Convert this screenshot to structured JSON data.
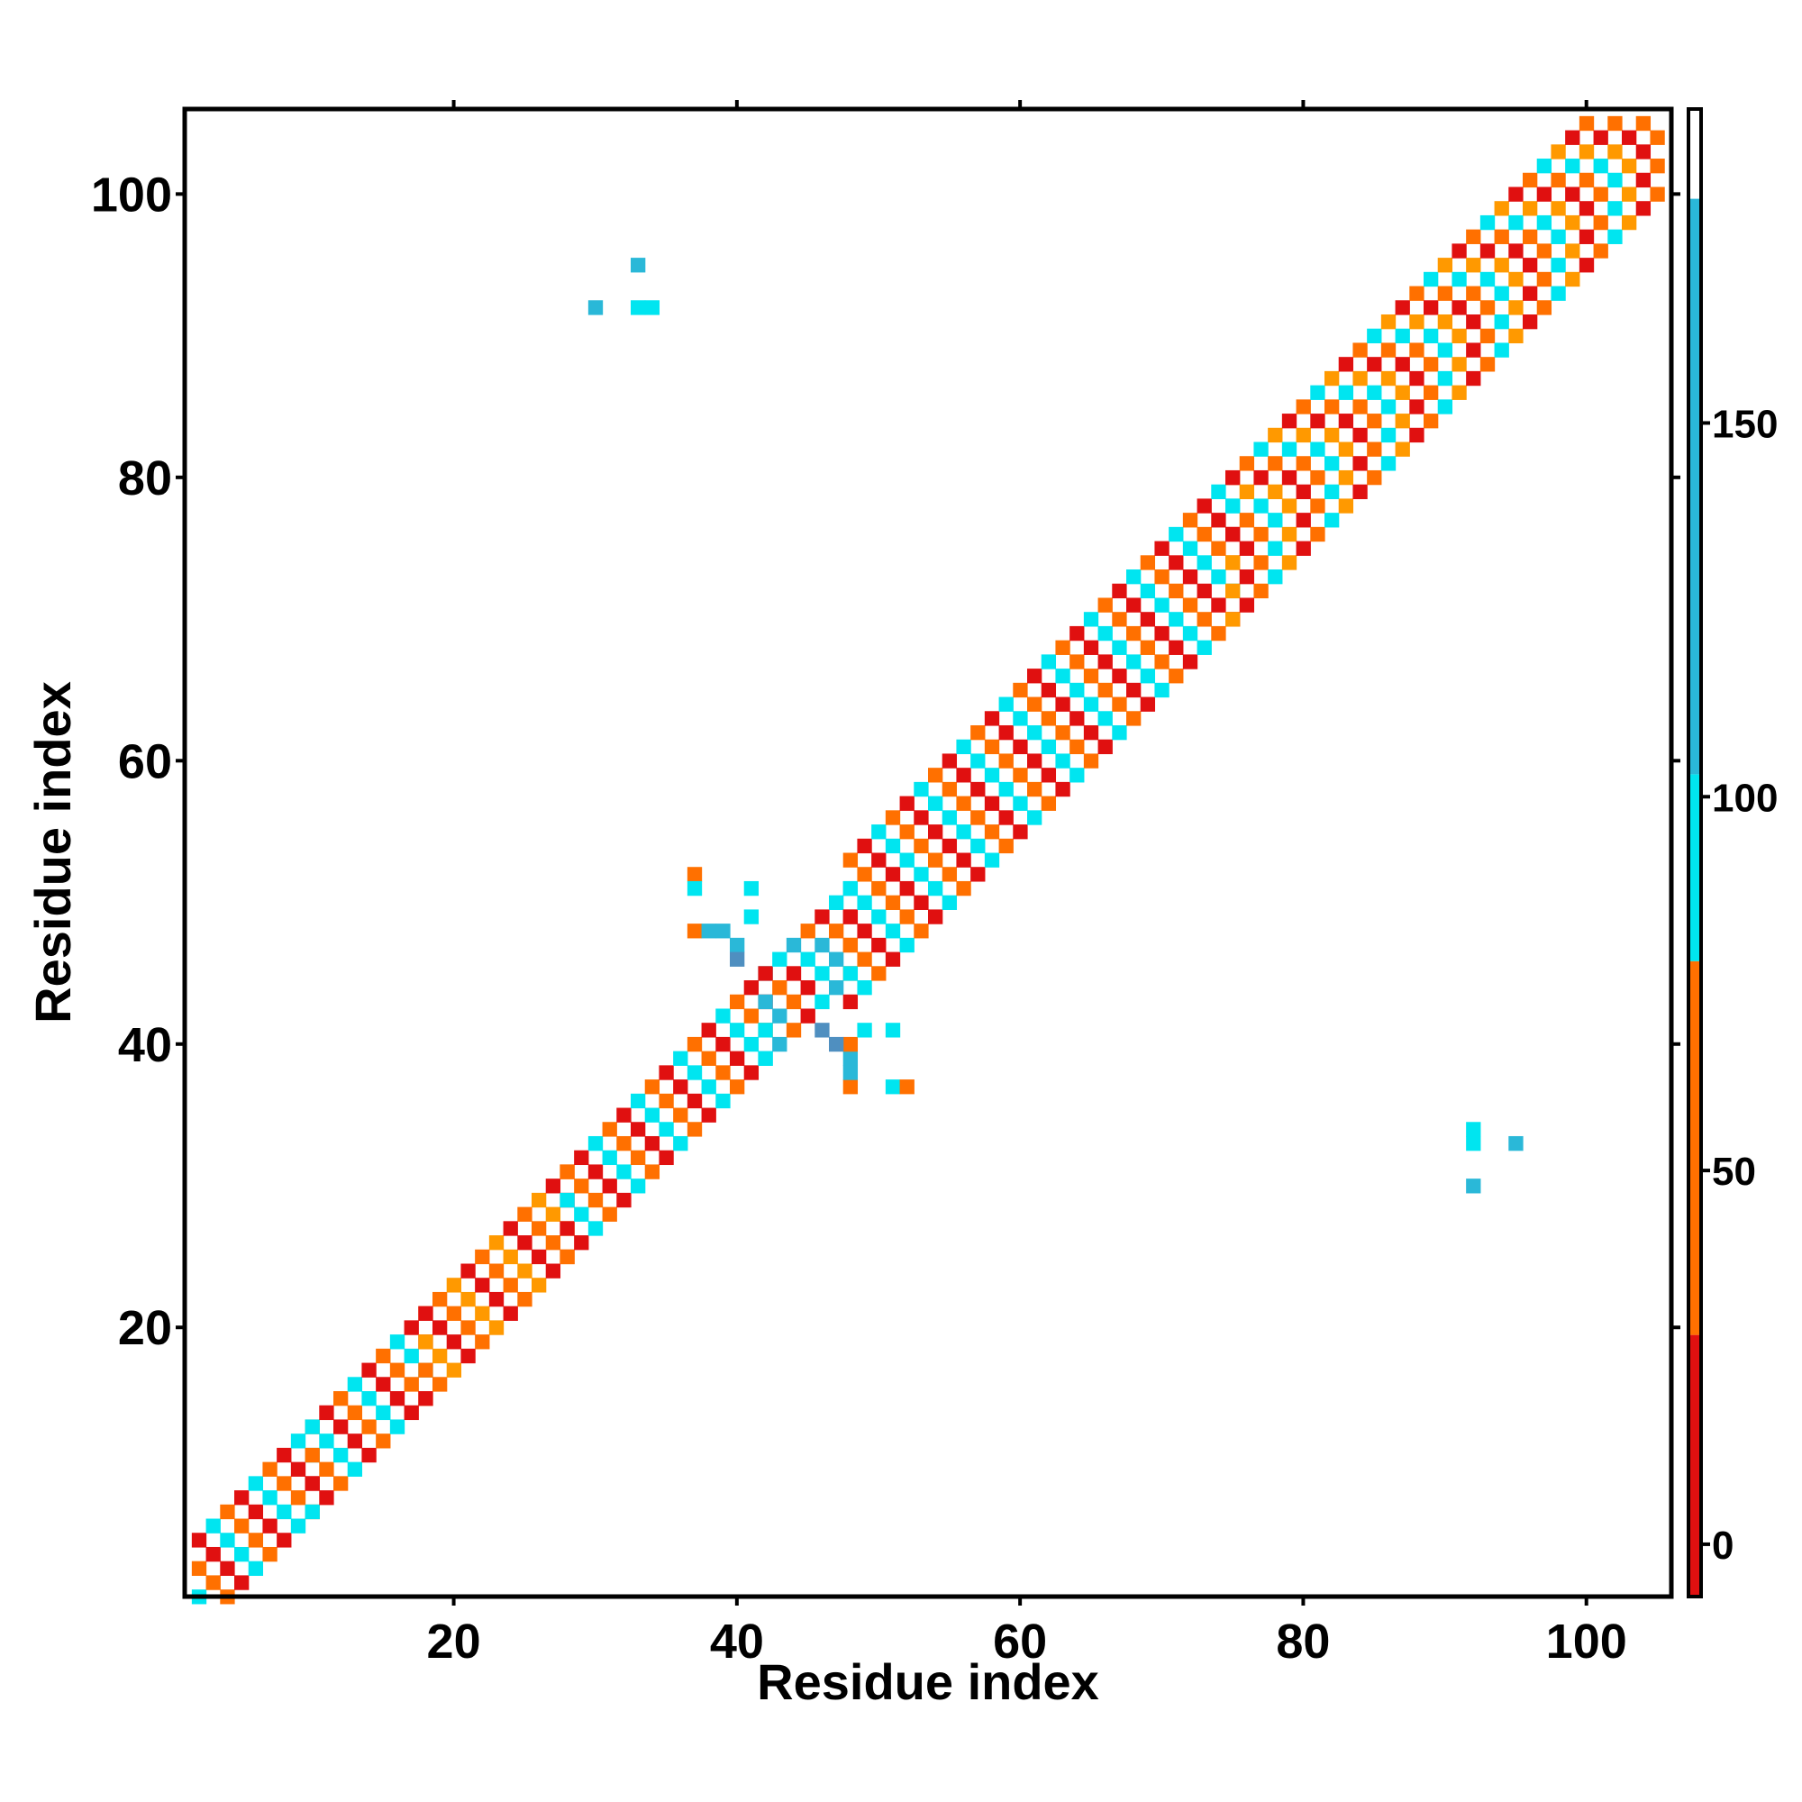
{
  "chart_data": {
    "type": "heatmap",
    "xlabel": "Residue index",
    "ylabel": "Residue index",
    "xlim": [
      1,
      106
    ],
    "ylim": [
      1,
      106
    ],
    "xticks": [
      20,
      40,
      60,
      80,
      100
    ],
    "yticks": [
      20,
      40,
      60,
      80,
      100
    ],
    "grid": false,
    "colorbar": {
      "ticks": [
        0,
        50,
        100,
        150
      ],
      "range": [
        -7,
        192
      ],
      "bands": [
        {
          "from": -7,
          "to": 28,
          "color": "#e01010"
        },
        {
          "from": 28,
          "to": 78,
          "color": "#ff7000"
        },
        {
          "from": 78,
          "to": 103,
          "color": "#00e5f0"
        },
        {
          "from": 103,
          "to": 180,
          "color": "#2ab8d8"
        },
        {
          "from": 180,
          "to": 192,
          "color": "#ffffff"
        }
      ]
    },
    "colors": {
      "red": "#e01010",
      "orange": "#ff7000",
      "amber": "#ff9900",
      "cyan": "#00e5f0",
      "teal": "#2ab8d8",
      "steel": "#4f8fc0"
    },
    "diagonal_band": {
      "segments": [
        {
          "from": 2,
          "to": 10,
          "width": 3,
          "palette": [
            "cyan",
            "orange",
            "red"
          ]
        },
        {
          "from": 10,
          "to": 18,
          "width": 4,
          "palette": [
            "orange",
            "cyan",
            "red"
          ]
        },
        {
          "from": 18,
          "to": 28,
          "width": 3,
          "palette": [
            "red",
            "orange",
            "amber"
          ]
        },
        {
          "from": 28,
          "to": 42,
          "width": 4,
          "palette": [
            "cyan",
            "orange",
            "red"
          ]
        },
        {
          "from": 42,
          "to": 48,
          "width": 4,
          "palette": [
            "cyan",
            "red",
            "orange",
            "teal"
          ]
        },
        {
          "from": 48,
          "to": 75,
          "width": 5,
          "palette": [
            "cyan",
            "orange",
            "red"
          ]
        },
        {
          "from": 75,
          "to": 105,
          "width": 5,
          "palette": [
            "cyan",
            "orange",
            "red",
            "amber"
          ]
        }
      ]
    },
    "off_diagonal": [
      {
        "x": 30,
        "y": 92,
        "color": "teal"
      },
      {
        "x": 33,
        "y": 92,
        "color": "cyan"
      },
      {
        "x": 34,
        "y": 92,
        "color": "cyan"
      },
      {
        "x": 33,
        "y": 95,
        "color": "teal"
      },
      {
        "x": 92,
        "y": 30,
        "color": "teal"
      },
      {
        "x": 92,
        "y": 33,
        "color": "cyan"
      },
      {
        "x": 92,
        "y": 34,
        "color": "cyan"
      },
      {
        "x": 95,
        "y": 33,
        "color": "teal"
      },
      {
        "x": 37,
        "y": 52,
        "color": "orange"
      },
      {
        "x": 37,
        "y": 51,
        "color": "cyan"
      },
      {
        "x": 41,
        "y": 51,
        "color": "cyan"
      },
      {
        "x": 41,
        "y": 49,
        "color": "cyan"
      },
      {
        "x": 37,
        "y": 48,
        "color": "orange"
      },
      {
        "x": 38,
        "y": 48,
        "color": "teal"
      },
      {
        "x": 39,
        "y": 48,
        "color": "teal"
      },
      {
        "x": 40,
        "y": 47,
        "color": "teal"
      },
      {
        "x": 40,
        "y": 46,
        "color": "steel"
      },
      {
        "x": 48,
        "y": 37,
        "color": "orange"
      },
      {
        "x": 48,
        "y": 38,
        "color": "teal"
      },
      {
        "x": 48,
        "y": 39,
        "color": "teal"
      },
      {
        "x": 48,
        "y": 40,
        "color": "orange"
      },
      {
        "x": 49,
        "y": 41,
        "color": "cyan"
      },
      {
        "x": 51,
        "y": 41,
        "color": "cyan"
      },
      {
        "x": 51,
        "y": 37,
        "color": "cyan"
      },
      {
        "x": 52,
        "y": 37,
        "color": "orange"
      },
      {
        "x": 47,
        "y": 40,
        "color": "steel"
      },
      {
        "x": 46,
        "y": 41,
        "color": "steel"
      }
    ]
  }
}
